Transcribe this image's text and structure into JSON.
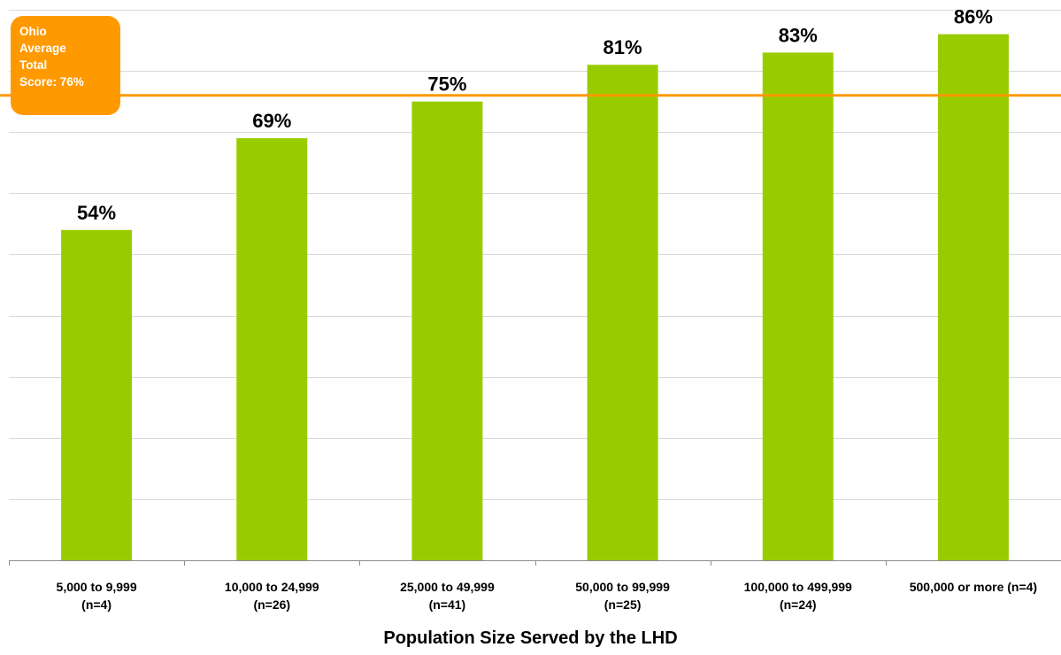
{
  "chart_data": {
    "type": "bar",
    "categories": [
      "5,000 to 9,999\n(n=4)",
      "10,000 to 24,999\n(n=26)",
      "25,000 to 49,999\n(n=41)",
      "50,000 to 99,999\n(n=25)",
      "100,000 to 499,999\n(n=24)",
      "500,000 or more (n=4)"
    ],
    "values": [
      54,
      69,
      75,
      81,
      83,
      86
    ],
    "data_labels": [
      "54%",
      "69%",
      "75%",
      "81%",
      "83%",
      "86%"
    ],
    "xlabel": "Population Size Served by the LHD",
    "ylabel": "",
    "ylim": [
      0,
      90
    ],
    "grid": true,
    "bar_color": "#99cc00",
    "reference_line": {
      "value": 76,
      "color": "#ff9900",
      "label": "Ohio\nAverage\nTotal\nScore: 76%"
    }
  }
}
